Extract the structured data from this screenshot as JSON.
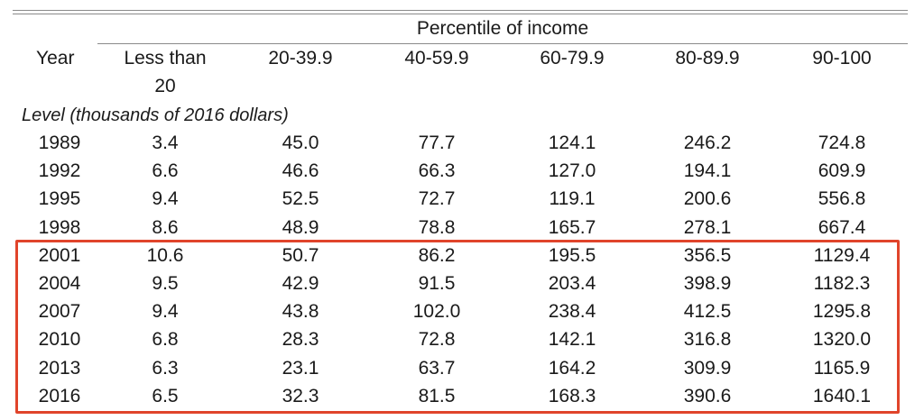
{
  "table": {
    "spanner_label": "Percentile of income",
    "year_header": "Year",
    "column_headers": [
      [
        "Less than",
        "20"
      ],
      [
        "20-39.9"
      ],
      [
        "40-59.9"
      ],
      [
        "60-79.9"
      ],
      [
        "80-89.9"
      ],
      [
        "90-100"
      ]
    ],
    "section_label": "Level (thousands of 2016 dollars)",
    "rows": [
      {
        "year": "1989",
        "values": [
          "3.4",
          "45.0",
          "77.7",
          "124.1",
          "246.2",
          "724.8"
        ]
      },
      {
        "year": "1992",
        "values": [
          "6.6",
          "46.6",
          "66.3",
          "127.0",
          "194.1",
          "609.9"
        ]
      },
      {
        "year": "1995",
        "values": [
          "9.4",
          "52.5",
          "72.7",
          "119.1",
          "200.6",
          "556.8"
        ]
      },
      {
        "year": "1998",
        "values": [
          "8.6",
          "48.9",
          "78.8",
          "165.7",
          "278.1",
          "667.4"
        ]
      },
      {
        "year": "2001",
        "values": [
          "10.6",
          "50.7",
          "86.2",
          "195.5",
          "356.5",
          "1129.4"
        ]
      },
      {
        "year": "2004",
        "values": [
          "9.5",
          "42.9",
          "91.5",
          "203.4",
          "398.9",
          "1182.3"
        ]
      },
      {
        "year": "2007",
        "values": [
          "9.4",
          "43.8",
          "102.0",
          "238.4",
          "412.5",
          "1295.8"
        ]
      },
      {
        "year": "2010",
        "values": [
          "6.8",
          "28.3",
          "72.8",
          "142.1",
          "316.8",
          "1320.0"
        ]
      },
      {
        "year": "2013",
        "values": [
          "6.3",
          "23.1",
          "63.7",
          "164.2",
          "309.9",
          "1165.9"
        ]
      },
      {
        "year": "2016",
        "values": [
          "6.5",
          "32.3",
          "81.5",
          "168.3",
          "390.6",
          "1640.1"
        ]
      }
    ],
    "highlight": {
      "rows_from_year": "2001",
      "rows_to_year": "2016",
      "color": "#e0442b"
    }
  }
}
